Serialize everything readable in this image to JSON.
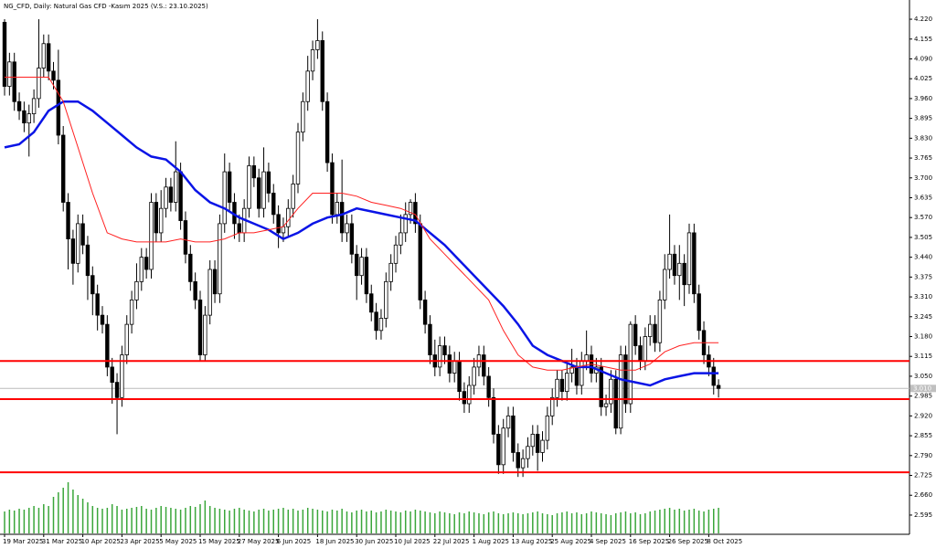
{
  "chart_data": {
    "type": "candlestick",
    "title": "NG_CFD, Daily: Natural Gas CFD -Kasım 2025 (V.S.: 23.10.2025)",
    "categories": [
      "19 Mar 2025",
      null,
      null,
      null,
      null,
      null,
      null,
      null,
      "31 Mar 2025",
      null,
      null,
      null,
      null,
      null,
      null,
      null,
      "10 Apr 2025",
      null,
      null,
      null,
      null,
      null,
      null,
      null,
      "23 Apr 2025",
      null,
      null,
      null,
      null,
      null,
      null,
      null,
      "5 May 2025",
      null,
      null,
      null,
      null,
      null,
      null,
      null,
      "15 May 2025",
      null,
      null,
      null,
      null,
      null,
      null,
      null,
      "27 May 2025",
      null,
      null,
      null,
      null,
      null,
      null,
      null,
      "6 Jun 2025",
      null,
      null,
      null,
      null,
      null,
      null,
      null,
      "18 Jun 2025",
      null,
      null,
      null,
      null,
      null,
      null,
      null,
      "30 Jun 2025",
      null,
      null,
      null,
      null,
      null,
      null,
      null,
      "10 Jul 2025",
      null,
      null,
      null,
      null,
      null,
      null,
      null,
      "22 Jul 2025",
      null,
      null,
      null,
      null,
      null,
      null,
      null,
      "1 Aug 2025",
      null,
      null,
      null,
      null,
      null,
      null,
      null,
      "13 Aug 2025",
      null,
      null,
      null,
      null,
      null,
      null,
      null,
      "25 Aug 2025",
      null,
      null,
      null,
      null,
      null,
      null,
      null,
      "4 Sep 2025",
      null,
      null,
      null,
      null,
      null,
      null,
      null,
      "16 Sep 2025",
      null,
      null,
      null,
      null,
      null,
      null,
      null,
      "26 Sep 2025",
      null,
      null,
      null,
      null,
      null,
      null,
      null,
      "8 Oct 2025",
      null,
      null
    ],
    "open": [
      4.21,
      4.0,
      4.08,
      3.95,
      3.92,
      3.88,
      3.91,
      3.96,
      4.06,
      4.14,
      4.05,
      4.02,
      3.84,
      3.62,
      3.5,
      3.42,
      3.55,
      3.48,
      3.38,
      3.32,
      3.25,
      3.22,
      3.08,
      3.03,
      2.98,
      3.12,
      3.22,
      3.3,
      3.36,
      3.44,
      3.4,
      3.62,
      3.52,
      3.6,
      3.67,
      3.62,
      3.72,
      3.56,
      3.45,
      3.36,
      3.3,
      3.12,
      3.25,
      3.4,
      3.32,
      3.55,
      3.72,
      3.62,
      3.55,
      3.52,
      3.6,
      3.74,
      3.7,
      3.6,
      3.72,
      3.65,
      3.58,
      3.52,
      3.54,
      3.6,
      3.68,
      3.85,
      3.95,
      4.05,
      4.12,
      4.15,
      3.95,
      3.75,
      3.58,
      3.62,
      3.52,
      3.55,
      3.45,
      3.38,
      3.44,
      3.32,
      3.26,
      3.2,
      3.24,
      3.36,
      3.42,
      3.48,
      3.52,
      3.58,
      3.62,
      3.55,
      3.3,
      3.22,
      3.12,
      3.08,
      3.15,
      3.12,
      3.06,
      3.1,
      3.0,
      2.96,
      3.02,
      3.08,
      3.12,
      3.05,
      2.98,
      2.86,
      2.76,
      2.88,
      2.92,
      2.8,
      2.75,
      2.78,
      2.82,
      2.86,
      2.8,
      2.84,
      2.92,
      2.98,
      3.04,
      3.0,
      3.06,
      3.08,
      3.02,
      3.1,
      3.12,
      3.06,
      3.08,
      2.95,
      2.96,
      3.04,
      2.88,
      3.12,
      2.96,
      3.22,
      3.15,
      3.1,
      3.18,
      3.22,
      3.16,
      3.3,
      3.4,
      3.45,
      3.38,
      3.42,
      3.35,
      3.52,
      3.32,
      3.2,
      3.12,
      3.08,
      3.02
    ],
    "high": [
      4.22,
      4.11,
      4.11,
      3.98,
      3.95,
      3.94,
      3.99,
      4.22,
      4.17,
      4.17,
      4.08,
      4.12,
      3.87,
      3.65,
      3.53,
      3.58,
      3.58,
      3.51,
      3.41,
      3.35,
      3.28,
      3.25,
      3.11,
      3.06,
      3.15,
      3.25,
      3.33,
      3.42,
      3.47,
      3.47,
      3.65,
      3.65,
      3.66,
      3.7,
      3.7,
      3.82,
      3.75,
      3.59,
      3.48,
      3.39,
      3.33,
      3.28,
      3.43,
      3.43,
      3.58,
      3.78,
      3.75,
      3.65,
      3.58,
      3.63,
      3.77,
      3.77,
      3.73,
      3.8,
      3.75,
      3.68,
      3.61,
      3.57,
      3.63,
      3.71,
      3.88,
      3.98,
      4.1,
      4.15,
      4.22,
      4.18,
      3.98,
      3.78,
      3.65,
      3.76,
      3.58,
      3.58,
      3.48,
      3.47,
      3.47,
      3.35,
      3.29,
      3.27,
      3.39,
      3.45,
      3.51,
      3.58,
      3.62,
      3.63,
      3.65,
      3.58,
      3.33,
      3.25,
      3.17,
      3.18,
      3.18,
      3.15,
      3.13,
      3.13,
      3.03,
      3.05,
      3.11,
      3.15,
      3.15,
      3.08,
      3.01,
      2.89,
      2.91,
      2.95,
      2.95,
      2.83,
      2.81,
      2.85,
      2.89,
      2.89,
      2.87,
      2.95,
      3.01,
      3.07,
      3.07,
      3.09,
      3.14,
      3.11,
      3.13,
      3.2,
      3.15,
      3.11,
      3.11,
      2.99,
      3.07,
      3.07,
      3.15,
      3.15,
      3.23,
      3.25,
      3.18,
      3.21,
      3.25,
      3.25,
      3.33,
      3.45,
      3.58,
      3.48,
      3.48,
      3.45,
      3.55,
      3.55,
      3.35,
      3.23,
      3.15,
      3.11,
      3.04
    ],
    "low": [
      3.97,
      3.97,
      3.92,
      3.89,
      3.85,
      3.77,
      3.88,
      3.93,
      4.03,
      4.02,
      3.99,
      3.81,
      3.59,
      3.4,
      3.35,
      3.39,
      3.45,
      3.3,
      3.25,
      3.2,
      3.19,
      3.05,
      2.96,
      2.86,
      2.95,
      3.09,
      3.19,
      3.27,
      3.33,
      3.37,
      3.37,
      3.49,
      3.49,
      3.57,
      3.59,
      3.59,
      3.53,
      3.42,
      3.33,
      3.27,
      3.1,
      3.1,
      3.22,
      3.29,
      3.29,
      3.52,
      3.59,
      3.5,
      3.49,
      3.49,
      3.57,
      3.67,
      3.57,
      3.57,
      3.62,
      3.55,
      3.47,
      3.49,
      3.51,
      3.57,
      3.65,
      3.82,
      3.92,
      4.02,
      4.09,
      3.92,
      3.72,
      3.55,
      3.55,
      3.49,
      3.49,
      3.42,
      3.3,
      3.35,
      3.29,
      3.23,
      3.17,
      3.17,
      3.21,
      3.33,
      3.39,
      3.45,
      3.49,
      3.55,
      3.52,
      3.27,
      3.19,
      3.09,
      3.05,
      3.05,
      3.09,
      3.03,
      3.03,
      2.97,
      2.93,
      2.93,
      2.99,
      3.05,
      3.02,
      2.95,
      2.83,
      2.73,
      2.73,
      2.85,
      2.77,
      2.72,
      2.72,
      2.75,
      2.79,
      2.74,
      2.77,
      2.81,
      2.89,
      2.95,
      2.97,
      2.97,
      3.03,
      2.99,
      2.99,
      3.07,
      3.03,
      3.03,
      2.92,
      2.92,
      2.93,
      2.86,
      2.86,
      2.93,
      2.93,
      3.12,
      3.07,
      3.07,
      3.15,
      3.13,
      3.13,
      3.27,
      3.37,
      3.35,
      3.3,
      3.28,
      3.32,
      3.29,
      3.17,
      3.09,
      3.05,
      2.99,
      2.98
    ],
    "close": [
      4.0,
      4.08,
      3.95,
      3.92,
      3.88,
      3.91,
      3.96,
      4.06,
      4.14,
      4.05,
      4.02,
      3.84,
      3.62,
      3.5,
      3.42,
      3.55,
      3.48,
      3.38,
      3.32,
      3.25,
      3.22,
      3.08,
      3.03,
      2.98,
      3.12,
      3.22,
      3.3,
      3.36,
      3.44,
      3.4,
      3.62,
      3.52,
      3.6,
      3.67,
      3.62,
      3.72,
      3.56,
      3.45,
      3.36,
      3.3,
      3.12,
      3.25,
      3.4,
      3.32,
      3.55,
      3.72,
      3.62,
      3.55,
      3.52,
      3.6,
      3.74,
      3.7,
      3.6,
      3.72,
      3.65,
      3.58,
      3.52,
      3.54,
      3.6,
      3.68,
      3.85,
      3.95,
      4.05,
      4.12,
      4.15,
      3.95,
      3.75,
      3.58,
      3.62,
      3.52,
      3.55,
      3.45,
      3.38,
      3.44,
      3.32,
      3.26,
      3.2,
      3.24,
      3.36,
      3.42,
      3.48,
      3.52,
      3.58,
      3.62,
      3.55,
      3.3,
      3.22,
      3.12,
      3.08,
      3.15,
      3.12,
      3.06,
      3.1,
      3.0,
      2.96,
      3.02,
      3.08,
      3.12,
      3.05,
      2.98,
      2.86,
      2.76,
      2.88,
      2.92,
      2.8,
      2.75,
      2.78,
      2.82,
      2.86,
      2.8,
      2.84,
      2.92,
      2.98,
      3.04,
      3.0,
      3.06,
      3.08,
      3.02,
      3.1,
      3.12,
      3.06,
      3.08,
      2.95,
      2.96,
      3.04,
      2.88,
      3.12,
      2.96,
      3.22,
      3.15,
      3.1,
      3.18,
      3.22,
      3.16,
      3.3,
      3.4,
      3.45,
      3.38,
      3.42,
      3.35,
      3.52,
      3.32,
      3.2,
      3.12,
      3.08,
      3.02,
      3.01
    ],
    "volume": [
      24,
      26,
      25,
      27,
      26,
      28,
      30,
      28,
      32,
      30,
      40,
      45,
      50,
      56,
      48,
      42,
      38,
      34,
      30,
      28,
      27,
      28,
      32,
      30,
      26,
      27,
      28,
      29,
      30,
      27,
      26,
      28,
      30,
      29,
      28,
      27,
      26,
      28,
      30,
      29,
      32,
      36,
      30,
      28,
      27,
      26,
      25,
      27,
      28,
      26,
      25,
      24,
      26,
      27,
      25,
      26,
      27,
      28,
      26,
      27,
      25,
      26,
      28,
      27,
      26,
      25,
      24,
      26,
      25,
      27,
      24,
      23,
      25,
      26,
      24,
      25,
      23,
      24,
      26,
      25,
      24,
      23,
      25,
      24,
      26,
      25,
      24,
      23,
      22,
      24,
      23,
      22,
      21,
      23,
      22,
      24,
      23,
      22,
      21,
      23,
      24,
      22,
      21,
      22,
      23,
      22,
      21,
      22,
      23,
      24,
      22,
      21,
      20,
      22,
      23,
      24,
      22,
      23,
      21,
      22,
      24,
      23,
      22,
      21,
      20,
      22,
      23,
      24,
      22,
      23,
      21,
      22,
      24,
      25,
      26,
      27,
      28,
      26,
      27,
      25,
      26,
      27,
      25,
      24,
      26,
      27,
      28
    ],
    "volume_lim": [
      0,
      60
    ],
    "up_color": "#ffffff",
    "down_color": "#000000",
    "volume_color": "#3aa63a",
    "series": [
      {
        "color": "#0a14e6",
        "width": 2.5,
        "x": [
          0,
          3,
          6,
          9,
          12,
          15,
          18,
          21,
          24,
          27,
          30,
          33,
          36,
          39,
          42,
          45,
          48,
          51,
          54,
          57,
          60,
          63,
          66,
          69,
          72,
          75,
          78,
          81,
          84,
          87,
          90,
          93,
          96,
          99,
          102,
          105,
          108,
          111,
          114,
          117,
          120,
          123,
          126,
          129,
          132,
          135,
          138,
          141,
          144,
          146
        ],
        "values": [
          3.8,
          3.81,
          3.85,
          3.92,
          3.95,
          3.95,
          3.92,
          3.88,
          3.84,
          3.8,
          3.77,
          3.76,
          3.72,
          3.66,
          3.62,
          3.6,
          3.57,
          3.55,
          3.53,
          3.5,
          3.52,
          3.55,
          3.57,
          3.58,
          3.6,
          3.59,
          3.58,
          3.57,
          3.56,
          3.52,
          3.48,
          3.43,
          3.38,
          3.33,
          3.28,
          3.22,
          3.15,
          3.12,
          3.1,
          3.08,
          3.08,
          3.06,
          3.04,
          3.03,
          3.02,
          3.04,
          3.05,
          3.06,
          3.06,
          3.06
        ]
      },
      {
        "color": "#ff2020",
        "width": 1,
        "x": [
          0,
          3,
          6,
          9,
          12,
          15,
          18,
          21,
          24,
          27,
          30,
          33,
          36,
          39,
          42,
          45,
          48,
          51,
          54,
          57,
          60,
          63,
          66,
          69,
          72,
          75,
          78,
          81,
          84,
          87,
          90,
          93,
          96,
          99,
          102,
          105,
          108,
          111,
          114,
          117,
          120,
          123,
          126,
          129,
          132,
          135,
          138,
          141,
          144,
          146
        ],
        "values": [
          4.03,
          4.03,
          4.03,
          4.03,
          3.95,
          3.8,
          3.65,
          3.52,
          3.5,
          3.49,
          3.49,
          3.49,
          3.5,
          3.49,
          3.49,
          3.5,
          3.52,
          3.52,
          3.53,
          3.54,
          3.6,
          3.65,
          3.65,
          3.65,
          3.64,
          3.62,
          3.61,
          3.6,
          3.58,
          3.5,
          3.45,
          3.4,
          3.35,
          3.3,
          3.2,
          3.12,
          3.08,
          3.07,
          3.07,
          3.08,
          3.09,
          3.08,
          3.07,
          3.07,
          3.09,
          3.13,
          3.15,
          3.16,
          3.16,
          3.16
        ]
      }
    ],
    "levels": [
      3.1,
      2.975,
      2.735
    ],
    "level_color": "#ff0000",
    "bid": {
      "value": 3.01,
      "label": "3.010"
    },
    "ylim": [
      2.532,
      4.277
    ],
    "yticks": [
      {
        "value": 4.22,
        "label": "4.220"
      },
      {
        "value": 4.155,
        "label": "4.155"
      },
      {
        "value": 4.09,
        "label": "4.090"
      },
      {
        "value": 4.025,
        "label": "4.025"
      },
      {
        "value": 3.96,
        "label": "3.960"
      },
      {
        "value": 3.895,
        "label": "3.895"
      },
      {
        "value": 3.83,
        "label": "3.830"
      },
      {
        "value": 3.765,
        "label": "3.765"
      },
      {
        "value": 3.7,
        "label": "3.700"
      },
      {
        "value": 3.635,
        "label": "3.635"
      },
      {
        "value": 3.57,
        "label": "3.570"
      },
      {
        "value": 3.505,
        "label": "3.505"
      },
      {
        "value": 3.44,
        "label": "3.440"
      },
      {
        "value": 3.375,
        "label": "3.375"
      },
      {
        "value": 3.31,
        "label": "3.310"
      },
      {
        "value": 3.245,
        "label": "3.245"
      },
      {
        "value": 3.18,
        "label": "3.180"
      },
      {
        "value": 3.115,
        "label": "3.115"
      },
      {
        "value": 3.05,
        "label": "3.050"
      },
      {
        "value": 2.985,
        "label": "2.985"
      },
      {
        "value": 2.92,
        "label": "2.920"
      },
      {
        "value": 2.855,
        "label": "2.855"
      },
      {
        "value": 2.79,
        "label": "2.790"
      },
      {
        "value": 2.725,
        "label": "2.725"
      },
      {
        "value": 2.66,
        "label": "2.660"
      },
      {
        "value": 2.595,
        "label": "2.595"
      }
    ]
  }
}
